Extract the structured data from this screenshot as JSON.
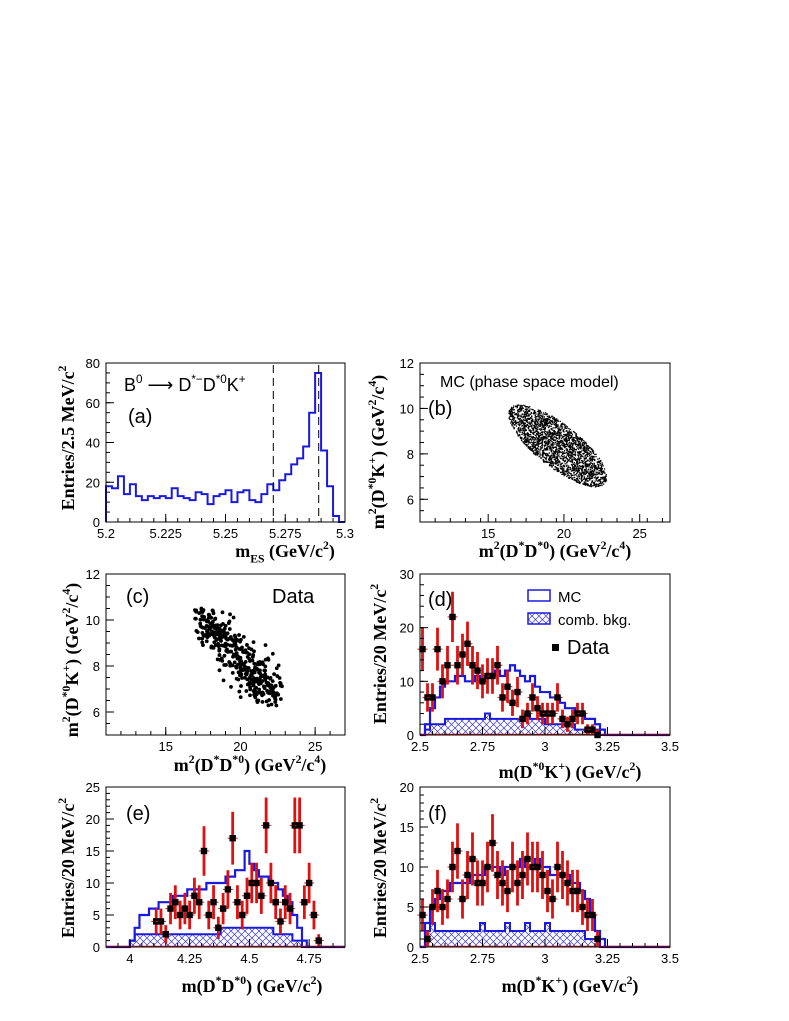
{
  "chart_data": [
    {
      "panel": "a",
      "type": "histogram",
      "tag": "(a)",
      "decay_label": {
        "B": "B",
        "B_sup": "0",
        "arrow": "⟶",
        "D1": "D",
        "D1_sup": "*−",
        "D2": "D",
        "D2_sup": "*0",
        "K": "K",
        "K_sup": "+"
      },
      "xlabel": {
        "main": "m",
        "sub": "ES",
        "unit": " (GeV/c",
        "unit_sup": "2",
        "close": ")"
      },
      "ylabel": {
        "main": "Entries/2.5 MeV/c",
        "sup": "2"
      },
      "xlim": [
        5.2,
        5.3
      ],
      "ylim": [
        0,
        80
      ],
      "xticks": [
        "5.2",
        "5.225",
        "5.25",
        "5.275",
        "5.3"
      ],
      "xtick_values": [
        5.2,
        5.225,
        5.25,
        5.275,
        5.3
      ],
      "yticks": [
        "0",
        "20",
        "40",
        "60",
        "80"
      ],
      "ytick_values": [
        0,
        20,
        40,
        60,
        80
      ],
      "cut_lines": [
        5.27,
        5.289
      ],
      "bin_start": 5.2,
      "bin_width": 0.0025,
      "counts": [
        18,
        17,
        23,
        14,
        19,
        13,
        11,
        13,
        12,
        13,
        12,
        17,
        13,
        12,
        11,
        15,
        14,
        9,
        13,
        14,
        16,
        10,
        15,
        16,
        11,
        10,
        14,
        19,
        16,
        21,
        24,
        29,
        32,
        38,
        55,
        75,
        36,
        18,
        3,
        0
      ]
    },
    {
      "panel": "b",
      "type": "scatter",
      "tag": "(b)",
      "annotation": "MC (phase space model)",
      "xlabel": {
        "m": "m",
        "sq": "2",
        "open": "(D",
        "s1": "*",
        "mid": "D",
        "s2": "*0",
        "unit": ") (GeV",
        "u1": "2",
        "slash": "/c",
        "u2": "4",
        "close": ")"
      },
      "ylabel": {
        "m": "m",
        "sq": "2",
        "open": "(D",
        "s1": "*0",
        "mid": "K",
        "s2": "+",
        "unit": ") (GeV",
        "u1": "2",
        "slash": "/c",
        "u2": "4",
        "close": ")"
      },
      "xlim": [
        10.5,
        27
      ],
      "ylim": [
        5,
        12
      ],
      "xticks": [
        "15",
        "20",
        "25"
      ],
      "xtick_values": [
        15,
        20,
        25
      ],
      "yticks": [
        "6",
        "8",
        "10",
        "12"
      ],
      "ytick_values": [
        6,
        8,
        10,
        12
      ],
      "note": "~2500 simulated events, elliptical band from (16,10.5) to (23,6.3)"
    },
    {
      "panel": "c",
      "type": "scatter",
      "tag": "(c)",
      "annotation": "Data",
      "xlabel": {
        "m": "m",
        "sq": "2",
        "open": "(D",
        "s1": "*",
        "mid": "D",
        "s2": "*0",
        "unit": ") (GeV",
        "u1": "2",
        "slash": "/c",
        "u2": "4",
        "close": ")"
      },
      "ylabel": {
        "m": "m",
        "sq": "2",
        "open": "(D",
        "s1": "*0",
        "mid": "K",
        "s2": "+",
        "unit": ") (GeV",
        "u1": "2",
        "slash": "/c",
        "u2": "4",
        "close": ")"
      },
      "xlim": [
        11,
        27
      ],
      "ylim": [
        5,
        12
      ],
      "xticks": [
        "15",
        "20",
        "25"
      ],
      "xtick_values": [
        15,
        20,
        25
      ],
      "yticks": [
        "6",
        "8",
        "10",
        "12"
      ],
      "ytick_values": [
        6,
        8,
        10,
        12
      ]
    },
    {
      "panel": "d",
      "type": "histogram+errorbar",
      "tag": "(d)",
      "legend": {
        "mc": "MC",
        "bkg": "comb. bkg.",
        "data": "Data"
      },
      "xlabel": {
        "main": "m(D",
        "s1": "*0",
        "mid": "K",
        "s2": "+",
        "unit": ") (GeV/c",
        "u1": "2",
        "close": ")"
      },
      "ylabel": {
        "main": "Entries/20 MeV/c",
        "sup": "2"
      },
      "xlim": [
        2.5,
        3.5
      ],
      "ylim": [
        0,
        30
      ],
      "xticks": [
        "2.5",
        "2.75",
        "3",
        "3.25",
        "3.5"
      ],
      "xtick_values": [
        2.5,
        2.75,
        3,
        3.25,
        3.5
      ],
      "yticks": [
        "0",
        "10",
        "20",
        "30"
      ],
      "ytick_values": [
        0,
        10,
        20,
        30
      ],
      "bin_start": 2.5,
      "bin_width": 0.02,
      "mc": [
        0,
        2,
        5,
        7,
        9,
        10,
        10,
        11,
        11,
        10,
        10,
        11,
        10,
        11,
        11,
        12,
        11,
        12,
        13,
        12,
        11,
        10,
        11,
        9,
        8,
        8,
        7,
        7,
        6,
        5,
        5,
        4,
        4,
        3,
        3,
        2,
        1,
        0,
        0,
        0,
        0,
        0,
        0,
        0,
        0,
        0,
        0,
        0,
        0,
        0
      ],
      "bkg": [
        0,
        1,
        2,
        2,
        2,
        3,
        3,
        3,
        3,
        3,
        3,
        3,
        3,
        4,
        3,
        3,
        3,
        3,
        3,
        3,
        3,
        4,
        3,
        3,
        3,
        2,
        2,
        2,
        2,
        2,
        2,
        1,
        1,
        1,
        1,
        1,
        0,
        0,
        0,
        0,
        0,
        0,
        0,
        0,
        0,
        0,
        0,
        0,
        0,
        0
      ],
      "data": [
        16,
        7,
        7,
        16,
        10,
        13,
        22,
        13,
        15,
        17,
        13,
        12,
        10,
        11,
        11,
        13,
        7,
        9,
        6,
        8,
        3,
        4,
        7,
        5,
        4,
        4,
        4,
        7,
        3,
        2,
        3,
        4,
        4,
        1,
        1,
        0
      ],
      "data_bin_start": 2.51
    },
    {
      "panel": "e",
      "type": "histogram+errorbar",
      "tag": "(e)",
      "xlabel": {
        "main": "m(D",
        "s1": "*",
        "mid": "D",
        "s2": "*0",
        "unit": ") (GeV/c",
        "u1": "2",
        "close": ")"
      },
      "ylabel": {
        "main": "Entries/20 MeV/c",
        "sup": "2"
      },
      "xlim": [
        3.9,
        4.9
      ],
      "ylim": [
        0,
        25
      ],
      "xticks": [
        "4",
        "4.25",
        "4.5",
        "4.75"
      ],
      "xtick_values": [
        4,
        4.25,
        4.5,
        4.75
      ],
      "yticks": [
        "0",
        "5",
        "10",
        "15",
        "20",
        "25"
      ],
      "ytick_values": [
        0,
        5,
        10,
        15,
        20,
        25
      ],
      "bin_start": 3.9,
      "bin_width": 0.02,
      "mc": [
        0,
        0,
        0,
        0,
        0,
        1,
        3,
        5,
        5,
        6,
        6,
        7,
        7,
        7,
        8,
        8,
        8,
        9,
        9,
        9,
        9,
        10,
        10,
        10,
        10,
        11,
        11,
        12,
        12,
        15,
        13,
        12,
        11,
        11,
        10,
        10,
        9,
        8,
        7,
        5,
        3,
        1,
        0,
        0,
        0,
        0,
        0,
        0,
        0,
        0
      ],
      "bkg": [
        0,
        0,
        0,
        0,
        0,
        1,
        2,
        2,
        2,
        2,
        2,
        2,
        2,
        2,
        2,
        2,
        2,
        2,
        2,
        2,
        2,
        2,
        2,
        2,
        3,
        3,
        3,
        3,
        3,
        3,
        3,
        3,
        3,
        3,
        3,
        2,
        2,
        2,
        2,
        1,
        1,
        0,
        0,
        0,
        0,
        0,
        0,
        0,
        0,
        0
      ],
      "data": [
        4,
        4,
        2,
        6,
        7,
        5,
        6,
        5,
        8,
        7,
        15,
        5,
        7,
        3,
        6,
        9,
        17,
        7,
        5,
        8,
        10,
        10,
        8,
        19,
        10,
        7,
        4,
        7,
        6,
        19,
        19,
        7,
        10,
        5,
        1
      ],
      "data_bin_start": 4.11
    },
    {
      "panel": "f",
      "type": "histogram+errorbar",
      "tag": "(f)",
      "xlabel": {
        "main": "m(D",
        "s1": "*",
        "mid": "K",
        "s2": "+",
        "unit": ") (GeV/c",
        "u1": "2",
        "close": ")"
      },
      "ylabel": {
        "main": "Entries/20 MeV/c",
        "sup": "2"
      },
      "xlim": [
        2.5,
        3.5
      ],
      "ylim": [
        0,
        20
      ],
      "xticks": [
        "2.5",
        "2.75",
        "3",
        "3.25",
        "3.5"
      ],
      "xtick_values": [
        2.5,
        2.75,
        3,
        3.25,
        3.5
      ],
      "yticks": [
        "0",
        "5",
        "10",
        "15",
        "20"
      ],
      "ytick_values": [
        0,
        5,
        10,
        15,
        20
      ],
      "bin_start": 2.5,
      "bin_width": 0.02,
      "mc": [
        0,
        3,
        5,
        6,
        7,
        7,
        8,
        8,
        8,
        8,
        9,
        9,
        9,
        10,
        10,
        10,
        9,
        10,
        10,
        10,
        11,
        10,
        10,
        11,
        10,
        10,
        9,
        9,
        9,
        9,
        8,
        8,
        7,
        6,
        4,
        2,
        1,
        0,
        0,
        0,
        0,
        0,
        0,
        0,
        0,
        0,
        0,
        0,
        0,
        0
      ],
      "bkg": [
        0,
        2,
        3,
        2,
        2,
        2,
        2,
        2,
        2,
        2,
        2,
        2,
        3,
        2,
        2,
        2,
        2,
        3,
        2,
        2,
        2,
        3,
        2,
        2,
        2,
        3,
        2,
        2,
        2,
        2,
        2,
        2,
        2,
        1,
        1,
        1,
        0,
        0,
        0,
        0,
        0,
        0,
        0,
        0,
        0,
        0,
        0,
        0,
        0,
        0
      ],
      "data": [
        4,
        1,
        5,
        7,
        5,
        6,
        10,
        12,
        6,
        9,
        11,
        8,
        8,
        10,
        13,
        9,
        8,
        7,
        10,
        8,
        9,
        11,
        10,
        10,
        9,
        7,
        6,
        10,
        9,
        8,
        7,
        7,
        5,
        4,
        4,
        1
      ],
      "data_bin_start": 2.51
    }
  ]
}
